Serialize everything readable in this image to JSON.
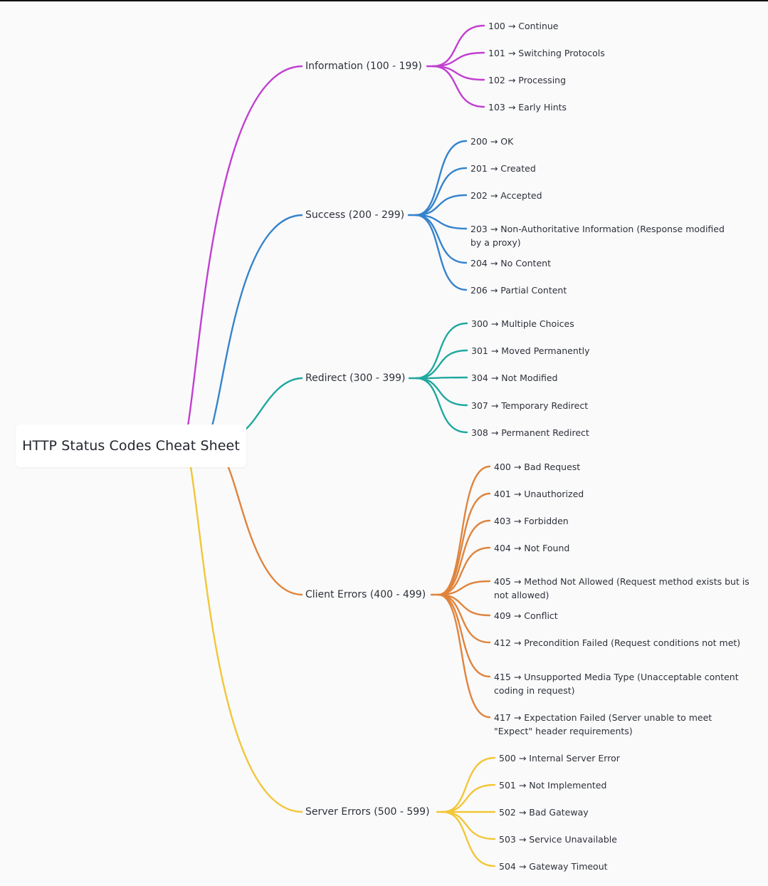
{
  "title": "HTTP Status Codes Cheat Sheet",
  "colors": {
    "information": "#c23fd0",
    "success": "#3583cc",
    "redirect": "#1fa89e",
    "client": "#e0843d",
    "server": "#f2c637",
    "background": "#fafafb"
  },
  "categories": [
    {
      "label": "Information (100 - 199)",
      "color": "#c23fd0",
      "items": [
        "100 → Continue",
        "101 → Switching Protocols",
        "102 → Processing",
        "103 → Early Hints"
      ]
    },
    {
      "label": "Success (200 - 299)",
      "color": "#3583cc",
      "items": [
        "200 → OK",
        "201 → Created",
        "202 → Accepted",
        "203 → Non-Authoritative Information (Response modified by a proxy)",
        "204 → No Content",
        "206 → Partial Content"
      ]
    },
    {
      "label": "Redirect (300 - 399)",
      "color": "#1fa89e",
      "items": [
        "300 → Multiple Choices",
        "301 → Moved Permanently",
        "304 → Not Modified",
        "307 → Temporary Redirect",
        "308 → Permanent Redirect"
      ]
    },
    {
      "label": "Client Errors (400 - 499)",
      "color": "#e0843d",
      "items": [
        "400 → Bad Request",
        "401 → Unauthorized",
        "403 → Forbidden",
        "404 → Not Found",
        "405 → Method Not Allowed (Request method exists but is not allowed)",
        "409 → Conflict",
        "412 → Precondition Failed (Request conditions not met)",
        "415 → Unsupported Media Type (Unacceptable content coding in request)",
        "417 → Expectation Failed (Server unable to meet \"Expect\" header requirements)"
      ]
    },
    {
      "label": "Server Errors (500 - 599)",
      "color": "#f2c637",
      "items": [
        "500 → Internal Server Error",
        "501 → Not Implemented",
        "502 → Bad Gateway",
        "503 → Service Unavailable",
        "504 → Gateway Timeout"
      ]
    }
  ]
}
